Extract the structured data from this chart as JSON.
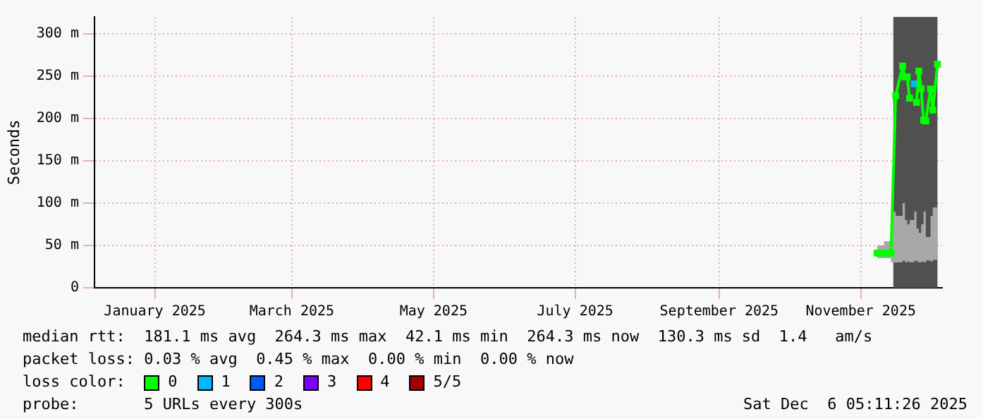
{
  "chart_data": {
    "type": "line",
    "ylabel": "Seconds",
    "legend_title": "loss color:",
    "legend": "bottom",
    "marker": "square",
    "grid": true,
    "x": [
      "2025-11-08",
      "2025-11-11",
      "2025-11-14",
      "2025-11-16",
      "2025-11-19",
      "2025-11-20",
      "2025-11-21",
      "2025-11-22",
      "2025-11-24",
      "2025-11-25",
      "2025-11-26",
      "2025-11-27",
      "2025-11-28",
      "2025-11-29",
      "2025-12-01",
      "2025-12-02",
      "2025-12-04"
    ],
    "series": [
      {
        "name": "0",
        "color": "#00ff00",
        "values": [
          41,
          41,
          41,
          227,
          262,
          249,
          249,
          224,
          null,
          219,
          256,
          235,
          198,
          197,
          235,
          210,
          264
        ],
        "lower": [
          36,
          35,
          35,
          30,
          30,
          32,
          30,
          31,
          30,
          32,
          31,
          30,
          31,
          30,
          32,
          31,
          33
        ],
        "upper": [
          52,
          50,
          55,
          90,
          85,
          100,
          80,
          75,
          80,
          90,
          70,
          65,
          75,
          90,
          60,
          85,
          95
        ]
      },
      {
        "name": "1",
        "color": "#00b8ff",
        "values": [
          null,
          null,
          null,
          null,
          null,
          null,
          null,
          null,
          241,
          null,
          null,
          null,
          null,
          null,
          null,
          null,
          null
        ]
      },
      {
        "name": "2",
        "color": "#0059ff",
        "values": [
          null,
          null,
          null,
          null,
          null,
          null,
          null,
          null,
          null,
          null,
          null,
          null,
          null,
          null,
          null,
          null,
          null
        ]
      },
      {
        "name": "3",
        "color": "#7e00ff",
        "values": [
          null,
          null,
          null,
          null,
          null,
          null,
          null,
          null,
          null,
          null,
          null,
          null,
          null,
          null,
          null,
          null,
          null
        ]
      },
      {
        "name": "4",
        "color": "#ff0000",
        "values": [
          null,
          null,
          null,
          null,
          null,
          null,
          null,
          null,
          null,
          null,
          null,
          null,
          null,
          null,
          null,
          null,
          null
        ]
      },
      {
        "name": "5/5",
        "color": "#a10000",
        "values": [
          null,
          null,
          null,
          null,
          null,
          null,
          null,
          null,
          null,
          null,
          null,
          null,
          null,
          null,
          null,
          null,
          null
        ]
      }
    ],
    "bands": [
      {
        "axis": "x",
        "from": "2025-11-15",
        "to": "2025-12-04",
        "color": "#505050"
      }
    ],
    "xlim": [
      "2024-12-06",
      "2025-12-06"
    ],
    "xticks": [
      {
        "value": "2025-01-01",
        "label": "January 2025"
      },
      {
        "value": "2025-03-01",
        "label": "March 2025"
      },
      {
        "value": "2025-05-01",
        "label": "May 2025"
      },
      {
        "value": "2025-07-01",
        "label": "July 2025"
      },
      {
        "value": "2025-09-01",
        "label": "September 2025"
      },
      {
        "value": "2025-11-01",
        "label": "November 2025"
      }
    ],
    "ylim": [
      0,
      320
    ],
    "yticks": [
      0,
      {
        "value": 50,
        "label": "50 m"
      },
      {
        "value": 100,
        "label": "100 m"
      },
      {
        "value": 150,
        "label": "150 m"
      },
      {
        "value": 200,
        "label": "200 m"
      },
      {
        "value": 250,
        "label": "250 m"
      },
      {
        "value": 300,
        "label": "300 m"
      }
    ],
    "annotations": [
      "median rtt:  181.1 ms avg  264.3 ms max  42.1 ms min  264.3 ms now  130.3 ms sd  1.4   am/s",
      "packet loss: 0.03 % avg  0.45 % max  0.00 % min  0.00 % now",
      "probe:       5 URLs every 300s",
      "Sat Dec  6 05:11:26 2025"
    ]
  }
}
